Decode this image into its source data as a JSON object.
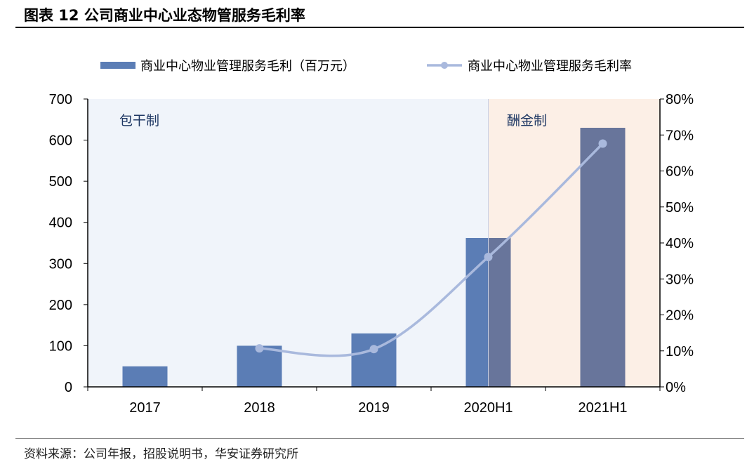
{
  "title": "图表 12 公司商业中心业态物管服务毛利率",
  "source": "资料来源：公司年报，招股说明书，华安证券研究所",
  "chart_data": {
    "type": "bar+line",
    "categories": [
      "2017",
      "2018",
      "2019",
      "2020H1",
      "2021H1"
    ],
    "series": [
      {
        "name": "商业中心物业管理服务毛利（百万元）",
        "type": "bar",
        "axis": "left",
        "values": [
          50,
          100,
          130,
          362,
          630
        ],
        "color": "#5b7db5"
      },
      {
        "name": "商业中心物业管理服务毛利率",
        "type": "line",
        "axis": "right",
        "values": [
          null,
          10.7,
          10.5,
          36.1,
          67.6
        ],
        "color": "#a9b9dd"
      }
    ],
    "ylim_left": [
      0,
      700
    ],
    "yticks_left": [
      "0",
      "100",
      "200",
      "300",
      "400",
      "500",
      "600",
      "700"
    ],
    "ylim_right": [
      0,
      80
    ],
    "yticks_right": [
      "0%",
      "10%",
      "20%",
      "30%",
      "40%",
      "50%",
      "60%",
      "70%",
      "80%"
    ],
    "regions": [
      {
        "label": "包干制",
        "from": "2017",
        "to": "2020H1",
        "color": "#f0f4fa"
      },
      {
        "label": "酬金制",
        "from": "2020H1",
        "to": "end",
        "color": "#fcefe6"
      }
    ],
    "legend": "top",
    "grid": false
  }
}
